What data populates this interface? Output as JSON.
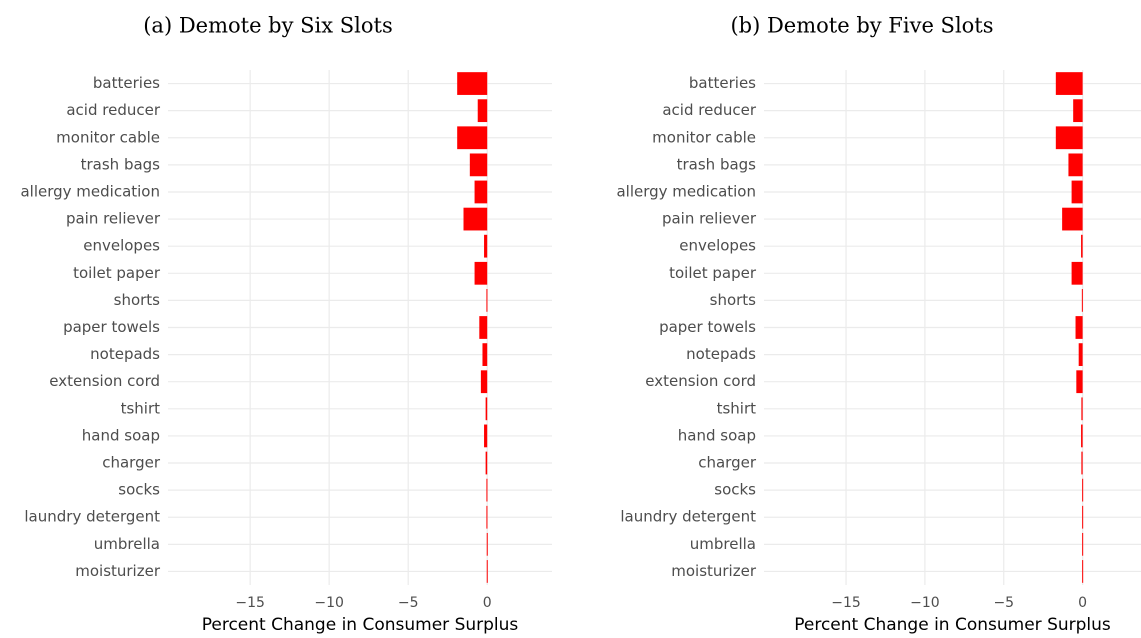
{
  "chart_data": [
    {
      "type": "barh",
      "title": "(a) Demote by Six Slots",
      "xlabel": "Percent Change in Consumer Surplus",
      "categories": [
        "batteries",
        "acid reducer",
        "monitor cable",
        "trash bags",
        "allergy medication",
        "pain reliever",
        "envelopes",
        "toilet paper",
        "shorts",
        "paper towels",
        "notepads",
        "extension cord",
        "tshirt",
        "hand soap",
        "charger",
        "socks",
        "laundry detergent",
        "umbrella",
        "moisturizer"
      ],
      "values": [
        -1.9,
        -0.6,
        -1.9,
        -1.1,
        -0.8,
        -1.5,
        -0.2,
        -0.8,
        -0.05,
        -0.5,
        -0.3,
        -0.4,
        -0.1,
        -0.2,
        -0.1,
        -0.05,
        -0.05,
        -0.03,
        -0.03
      ],
      "color": "#ff0000",
      "xlim": [
        -20.2,
        4.1
      ],
      "xticks": [
        {
          "value": -15,
          "label": "−15"
        },
        {
          "value": -10,
          "label": "−10"
        },
        {
          "value": -5,
          "label": "−5"
        },
        0
      ],
      "grid": true
    },
    {
      "type": "barh",
      "title": "(b) Demote by Five Slots",
      "xlabel": "Percent Change in Consumer Surplus",
      "categories": [
        "batteries",
        "acid reducer",
        "monitor cable",
        "trash bags",
        "allergy medication",
        "pain reliever",
        "envelopes",
        "toilet paper",
        "shorts",
        "paper towels",
        "notepads",
        "extension cord",
        "tshirt",
        "hand soap",
        "charger",
        "socks",
        "laundry detergent",
        "umbrella",
        "moisturizer"
      ],
      "values": [
        -1.7,
        -0.6,
        -1.7,
        -0.9,
        -0.7,
        -1.3,
        -0.1,
        -0.7,
        -0.05,
        -0.45,
        -0.25,
        -0.4,
        -0.08,
        -0.1,
        -0.08,
        -0.03,
        -0.03,
        -0.03,
        -0.03
      ],
      "color": "#ff0000",
      "xlim": [
        -20.2,
        3.7
      ],
      "xticks": [
        {
          "value": -15,
          "label": "−15"
        },
        {
          "value": -10,
          "label": "−10"
        },
        {
          "value": -5,
          "label": "−5"
        },
        0
      ],
      "grid": true
    }
  ]
}
